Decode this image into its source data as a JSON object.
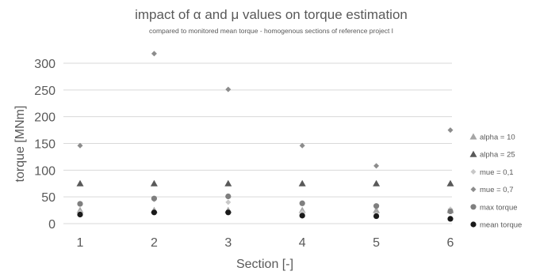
{
  "chart_data": {
    "type": "scatter",
    "title": "impact of α and μ values on torque estimation",
    "subtitle": "compared to monitored mean torque - homogenous sections of reference project I",
    "xlabel": "Section [-]",
    "ylabel": "torque [MNm]",
    "x": [
      1,
      2,
      3,
      4,
      5,
      6
    ],
    "x_ticks": [
      "1",
      "2",
      "3",
      "4",
      "5",
      "6"
    ],
    "y_ticks": [
      "0",
      "50",
      "100",
      "150",
      "200",
      "250",
      "300"
    ],
    "ylim": [
      0,
      320
    ],
    "grid": true,
    "legend_position": "right",
    "series": [
      {
        "name": "alpha = 10",
        "marker": "triangle",
        "color": "#a6a6a6",
        "values": [
          25,
          25,
          25,
          25,
          25,
          25
        ]
      },
      {
        "name": "alpha = 25",
        "marker": "triangle",
        "color": "#595959",
        "values": [
          75,
          75,
          75,
          75,
          75,
          75
        ]
      },
      {
        "name": "mue = 0,1",
        "marker": "diamond",
        "color": "#c8c8c8",
        "values": [
          21,
          45,
          40,
          21,
          17,
          27
        ]
      },
      {
        "name": "mue = 0,7",
        "marker": "diamond",
        "color": "#8c8c8c",
        "values": [
          146,
          318,
          251,
          146,
          108,
          175
        ]
      },
      {
        "name": "max torque",
        "marker": "circle",
        "color": "#7f7f7f",
        "values": [
          37,
          47,
          51,
          38,
          33,
          23
        ]
      },
      {
        "name": "mean torque",
        "marker": "circle",
        "color": "#1a1a1a",
        "values": [
          17,
          21,
          21,
          15,
          14,
          9
        ]
      }
    ]
  }
}
